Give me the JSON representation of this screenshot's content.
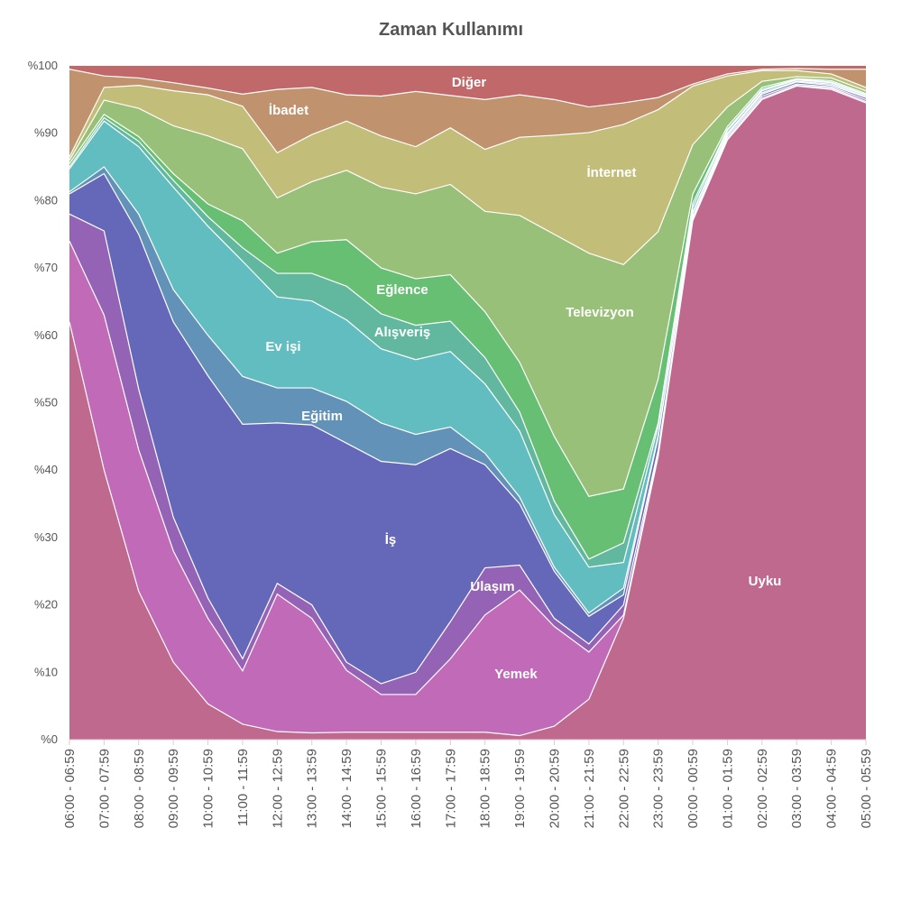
{
  "chart_data": {
    "type": "area",
    "stacked": true,
    "title": "Zaman Kullanımı",
    "xlabel": "",
    "ylabel": "",
    "ylim": [
      0,
      100
    ],
    "yticks": [
      "%0",
      "%10",
      "%20",
      "%30",
      "%40",
      "%50",
      "%60",
      "%70",
      "%80",
      "%90",
      "%100"
    ],
    "categories": [
      "06:00 - 06:59",
      "07:00 - 07:59",
      "08:00 - 08:59",
      "09:00 - 09:59",
      "10:00 - 10:59",
      "11:00 - 11:59",
      "12:00 - 12:59",
      "13:00 - 13:59",
      "14:00 - 14:59",
      "15:00 - 15:59",
      "16:00 - 16:59",
      "17:00 - 17:59",
      "18:00 - 18:59",
      "19:00 - 19:59",
      "20:00 - 20:59",
      "21:00 - 21:59",
      "22:00 - 22:59",
      "23:00 - 23:59",
      "00:00 - 00:59",
      "01:00 - 01:59",
      "02:00 - 02:59",
      "03:00 - 03:59",
      "04:00 - 04:59",
      "05:00 - 05:59"
    ],
    "series": [
      {
        "name": "Uyku",
        "color": "#c0698f",
        "values": [
          62,
          40,
          22,
          11.5,
          5.3,
          2.3,
          1.2,
          1.0,
          1.1,
          1.1,
          1.1,
          1.1,
          1.1,
          0.6,
          2,
          6,
          18,
          42,
          77,
          89,
          95,
          97,
          96.5,
          94.5
        ]
      },
      {
        "name": "Yemek",
        "color": "#c06ab8",
        "values": [
          12,
          23,
          21,
          16.5,
          12.7,
          7.9,
          20.4,
          17,
          9.2,
          5.6,
          5.6,
          10.9,
          17.4,
          21.6,
          14.8,
          7,
          0.5,
          0.5,
          0.3,
          0.2,
          0.2,
          0.1,
          0.2,
          0.2
        ]
      },
      {
        "name": "Ulaşım",
        "color": "#9563b5",
        "values": [
          4,
          12.5,
          9,
          5,
          3,
          1.8,
          1.6,
          2,
          1.2,
          1.6,
          3.3,
          5.5,
          7,
          3.7,
          1.2,
          1.2,
          1.5,
          0.5,
          0.3,
          0.3,
          0.3,
          0.2,
          0.2,
          0.3
        ]
      },
      {
        "name": "İş",
        "color": "#6568b8",
        "values": [
          3,
          8.5,
          23,
          29,
          33,
          34.8,
          23.8,
          26.7,
          32.5,
          33,
          30.8,
          25.7,
          15.3,
          9.1,
          7,
          4.1,
          1.5,
          1.8,
          0.5,
          0.3,
          0.3,
          0.3,
          0.2,
          0.3
        ]
      },
      {
        "name": "Eğitim",
        "color": "#6392b8",
        "values": [
          0.3,
          1,
          3,
          4.8,
          6,
          7.1,
          5.2,
          5.5,
          6.2,
          5.7,
          4.5,
          3.2,
          1.7,
          1,
          0.6,
          0.5,
          1,
          0.3,
          0.2,
          0.2,
          0.2,
          0.1,
          0.2,
          0.1
        ]
      },
      {
        "name": "Ev işi",
        "color": "#62bdc0",
        "values": [
          3.4,
          6.8,
          10,
          15.2,
          16.2,
          17.1,
          13.5,
          12.9,
          12.1,
          11,
          11.1,
          11.2,
          10.3,
          9.8,
          7.8,
          6.8,
          3.8,
          1.4,
          0.7,
          0.4,
          0.3,
          0.2,
          0.2,
          0.2
        ]
      },
      {
        "name": "Alışveriş",
        "color": "#61b89f",
        "values": [
          0.3,
          0.5,
          0.8,
          1,
          1.4,
          2,
          3.5,
          4.1,
          5,
          5.2,
          5.1,
          4.5,
          3.9,
          2.8,
          2,
          1.2,
          2.9,
          0.5,
          0.6,
          0.2,
          0.2,
          0.1,
          0.1,
          0.1
        ]
      },
      {
        "name": "Eğlence",
        "color": "#67bf74",
        "values": [
          0.5,
          0.5,
          0.7,
          1,
          1.9,
          4,
          3,
          4.7,
          6.9,
          6.8,
          6.9,
          6.9,
          6.8,
          7.4,
          9.6,
          9.3,
          8,
          6.5,
          1.4,
          0.4,
          0.3,
          0.1,
          0.2,
          0.2
        ]
      },
      {
        "name": "Televizyon",
        "color": "#98c078",
        "values": [
          0.5,
          2.1,
          4.2,
          7.1,
          10.1,
          10.7,
          8.2,
          8.9,
          10.3,
          12,
          12.6,
          13.4,
          14.9,
          21.8,
          30,
          36.1,
          33.3,
          21.9,
          7.3,
          2.9,
          0.9,
          0.3,
          0.4,
          0.4
        ]
      },
      {
        "name": "İnternet",
        "color": "#c2be7a",
        "values": [
          0.5,
          1.9,
          3.4,
          5.2,
          6.1,
          6.3,
          6.7,
          7,
          7.3,
          7.6,
          7,
          8.4,
          9.2,
          11.6,
          14.7,
          17.9,
          20.8,
          18.1,
          8.7,
          4.6,
          1.6,
          0.9,
          0.6,
          0.5
        ]
      },
      {
        "name": "İbadet",
        "color": "#c0926e",
        "values": [
          13,
          1.7,
          1.1,
          1.2,
          1,
          1.8,
          9.4,
          7,
          3.9,
          5.9,
          8.2,
          4.8,
          7.4,
          6.3,
          5.3,
          3.8,
          3.2,
          1.8,
          0.3,
          0.3,
          0.2,
          0.3,
          0.7,
          2.7
        ]
      },
      {
        "name": "Diğer",
        "color": "#c0686a",
        "values": [
          0.5,
          1.5,
          1.8,
          2.5,
          3.3,
          4.2,
          3.5,
          3.2,
          4.3,
          4.5,
          3.8,
          4.4,
          5,
          4.3,
          5,
          6.1,
          5.5,
          4.7,
          2.7,
          1.2,
          0.5,
          0.4,
          0.5,
          0.5
        ]
      }
    ],
    "legend": "inline-labels",
    "grid": false
  }
}
